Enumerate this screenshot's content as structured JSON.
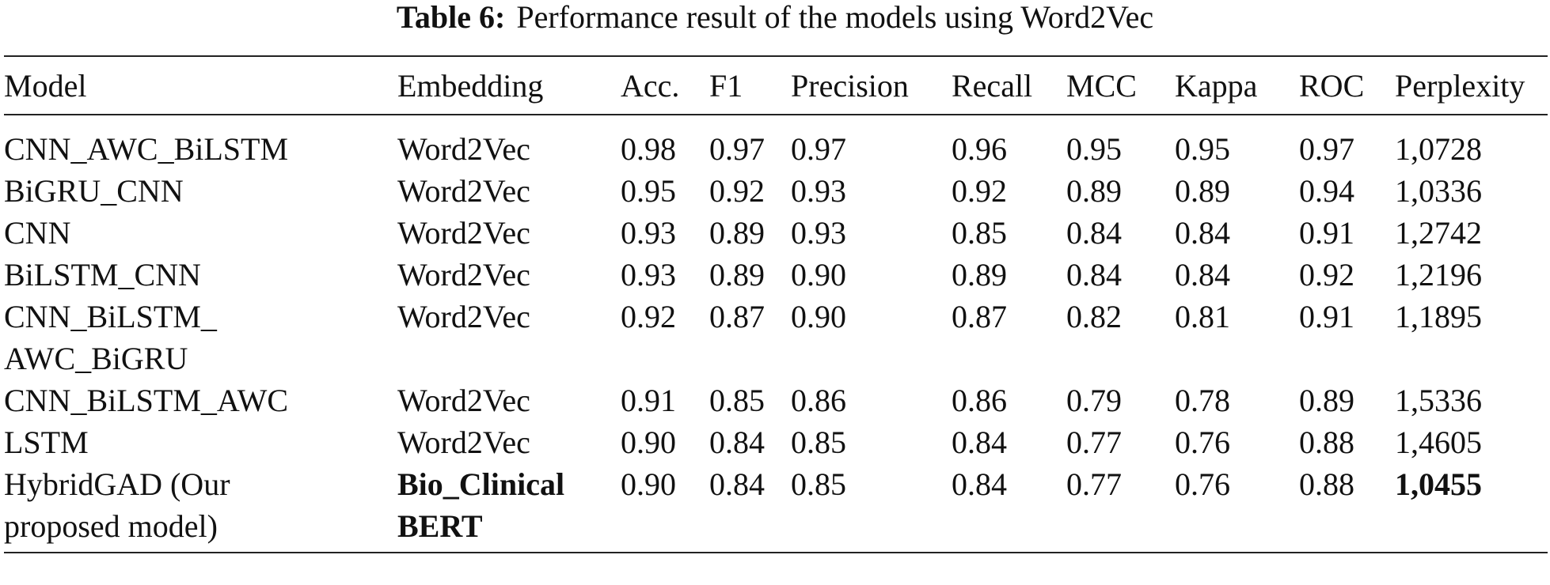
{
  "caption": {
    "label": "Table 6:",
    "text": "Performance result of the models using Word2Vec"
  },
  "table": {
    "headers": [
      "Model",
      "Embedding",
      "Acc.",
      "F1",
      "Precision",
      "Recall",
      "MCC",
      "Kappa",
      "ROC",
      "Perplexity"
    ],
    "rows": [
      {
        "model": [
          "CNN_AWC_BiLSTM"
        ],
        "embedding": [
          "Word2Vec"
        ],
        "acc": "0.98",
        "f1": "0.97",
        "precision": "0.97",
        "recall": "0.96",
        "mcc": "0.95",
        "kappa": "0.95",
        "roc": "0.97",
        "perplexity": "1,0728"
      },
      {
        "model": [
          "BiGRU_CNN"
        ],
        "embedding": [
          "Word2Vec"
        ],
        "acc": "0.95",
        "f1": "0.92",
        "precision": "0.93",
        "recall": "0.92",
        "mcc": "0.89",
        "kappa": "0.89",
        "roc": "0.94",
        "perplexity": "1,0336"
      },
      {
        "model": [
          "CNN"
        ],
        "embedding": [
          "Word2Vec"
        ],
        "acc": "0.93",
        "f1": "0.89",
        "precision": "0.93",
        "recall": "0.85",
        "mcc": "0.84",
        "kappa": "0.84",
        "roc": "0.91",
        "perplexity": "1,2742"
      },
      {
        "model": [
          "BiLSTM_CNN"
        ],
        "embedding": [
          "Word2Vec"
        ],
        "acc": "0.93",
        "f1": "0.89",
        "precision": "0.90",
        "recall": "0.89",
        "mcc": "0.84",
        "kappa": "0.84",
        "roc": "0.92",
        "perplexity": "1,2196"
      },
      {
        "model": [
          "CNN_BiLSTM_",
          "AWC_BiGRU"
        ],
        "embedding": [
          "Word2Vec"
        ],
        "acc": "0.92",
        "f1": "0.87",
        "precision": "0.90",
        "recall": "0.87",
        "mcc": "0.82",
        "kappa": "0.81",
        "roc": "0.91",
        "perplexity": "1,1895"
      },
      {
        "model": [
          "CNN_BiLSTM_AWC"
        ],
        "embedding": [
          "Word2Vec"
        ],
        "acc": "0.91",
        "f1": "0.85",
        "precision": "0.86",
        "recall": "0.86",
        "mcc": "0.79",
        "kappa": "0.78",
        "roc": "0.89",
        "perplexity": "1,5336"
      },
      {
        "model": [
          "LSTM"
        ],
        "embedding": [
          "Word2Vec"
        ],
        "acc": "0.90",
        "f1": "0.84",
        "precision": "0.85",
        "recall": "0.84",
        "mcc": "0.77",
        "kappa": "0.76",
        "roc": "0.88",
        "perplexity": "1,4605"
      },
      {
        "model": [
          "HybridGAD (Our",
          "proposed model)"
        ],
        "embedding": [
          "Bio_Clinical",
          "BERT"
        ],
        "embedding_bold": true,
        "acc": "0.90",
        "f1": "0.84",
        "precision": "0.85",
        "recall": "0.84",
        "mcc": "0.77",
        "kappa": "0.76",
        "roc": "0.88",
        "perplexity": "1,0455",
        "perplexity_bold": true
      }
    ]
  }
}
